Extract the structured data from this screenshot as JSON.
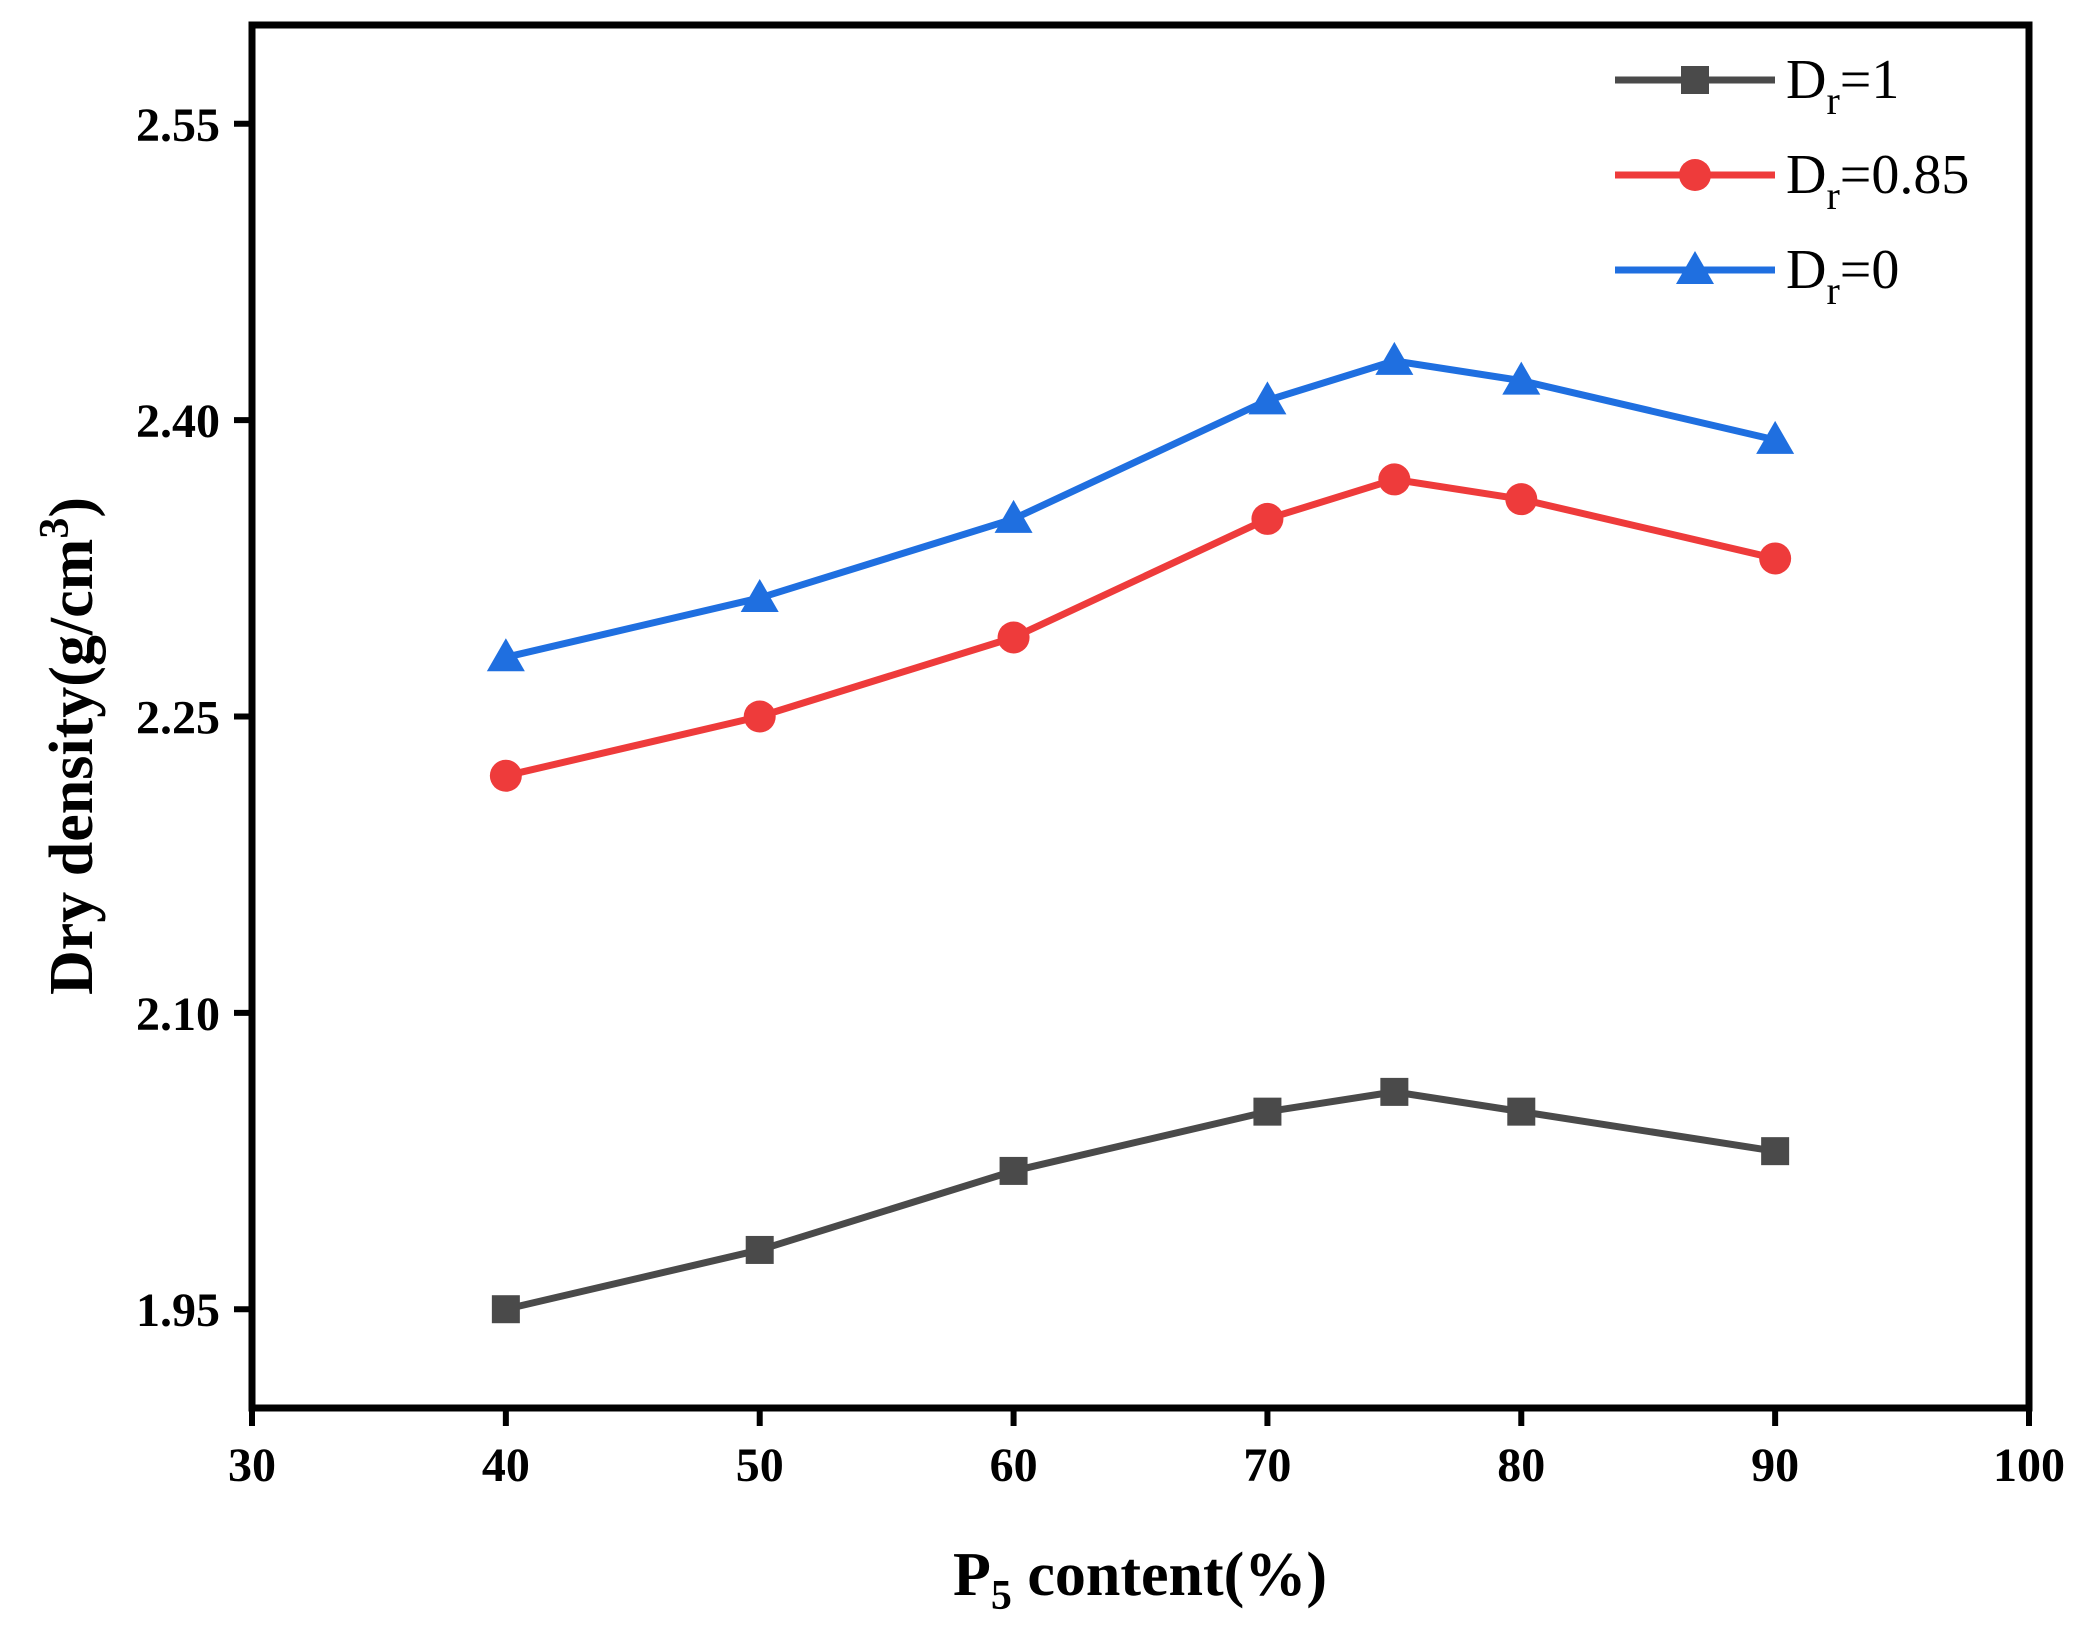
{
  "chart_data": {
    "type": "line",
    "title": "",
    "xlabel": {
      "prefix": "P",
      "subscript": "5",
      "suffix": " content(%)"
    },
    "ylabel": {
      "main": "Dry density(g/cm",
      "superscript": "3",
      "close": ")"
    },
    "xlim": [
      30,
      100
    ],
    "ylim": [
      1.9,
      2.6
    ],
    "xticks": [
      30,
      40,
      50,
      60,
      70,
      80,
      90,
      100
    ],
    "yticks": [
      1.95,
      2.1,
      2.25,
      2.4,
      2.55
    ],
    "ytick_labels": [
      "1.95",
      "2.10",
      "2.25",
      "2.40",
      "2.55"
    ],
    "grid": false,
    "legend_position": "top-right",
    "x": [
      40,
      50,
      60,
      70,
      75,
      80,
      90
    ],
    "series": [
      {
        "name": "Dr=1",
        "label_main": "D",
        "label_sub": "r",
        "label_value": "=1",
        "color": "#4a4a4a",
        "marker": "square",
        "values": [
          1.95,
          1.98,
          2.02,
          2.05,
          2.06,
          2.05,
          2.03
        ]
      },
      {
        "name": "Dr=0.85",
        "label_main": "D",
        "label_sub": "r",
        "label_value": "=0.85",
        "color": "#ee3b3b",
        "marker": "circle",
        "values": [
          2.22,
          2.25,
          2.29,
          2.35,
          2.37,
          2.36,
          2.33
        ]
      },
      {
        "name": "Dr=0",
        "label_main": "D",
        "label_sub": "r",
        "label_value": "=0",
        "color": "#1f6fe0",
        "marker": "triangle",
        "values": [
          2.28,
          2.31,
          2.35,
          2.41,
          2.43,
          2.42,
          2.39
        ]
      }
    ]
  }
}
